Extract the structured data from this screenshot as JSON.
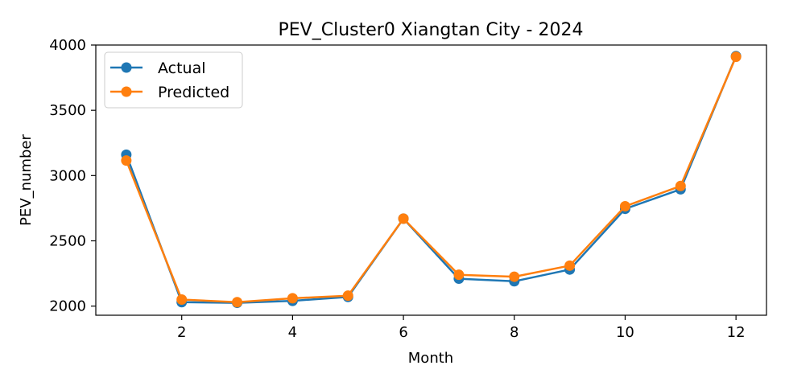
{
  "chart_data": {
    "type": "line",
    "title": "PEV_Cluster0 Xiangtan City - 2024",
    "xlabel": "Month",
    "ylabel": "PEV_number",
    "x": [
      1,
      2,
      3,
      4,
      5,
      6,
      7,
      8,
      9,
      10,
      11,
      12
    ],
    "xlim": [
      0.45,
      12.55
    ],
    "ylim": [
      1930,
      4000
    ],
    "xticks": [
      2,
      4,
      6,
      8,
      10,
      12
    ],
    "yticks": [
      2000,
      2500,
      3000,
      3500,
      4000
    ],
    "grid": false,
    "legend_position": "top-left",
    "series": [
      {
        "name": "Actual",
        "color": "#1f77b4",
        "values": [
          3160,
          2030,
          2025,
          2040,
          2070,
          2670,
          2210,
          2190,
          2280,
          2745,
          2895,
          3915
        ]
      },
      {
        "name": "Predicted",
        "color": "#ff7f0e",
        "values": [
          3115,
          2050,
          2030,
          2060,
          2080,
          2670,
          2240,
          2225,
          2310,
          2765,
          2920,
          3910
        ]
      }
    ]
  }
}
